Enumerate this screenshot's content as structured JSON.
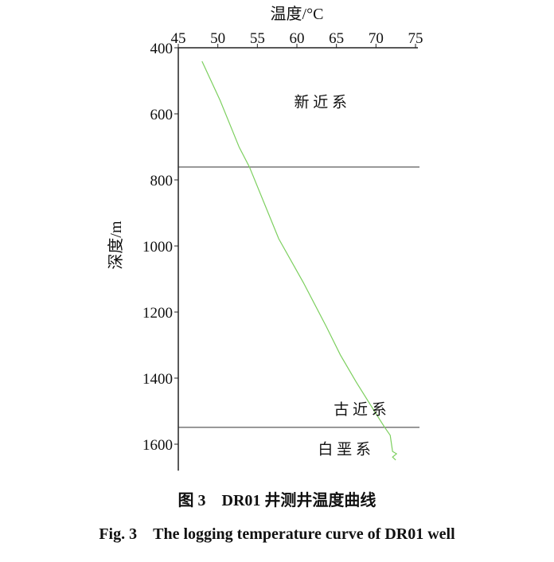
{
  "chart_data": {
    "type": "line",
    "xlabel": "温度/°C",
    "ylabel": "深度/m",
    "xlim": [
      45,
      75
    ],
    "ylim": [
      400,
      1680
    ],
    "y_inverted": true,
    "x_axis_position": "top",
    "grid": false,
    "x_ticks": [
      45,
      50,
      55,
      60,
      65,
      70,
      75
    ],
    "y_ticks": [
      400,
      600,
      800,
      1000,
      1200,
      1400,
      1600
    ],
    "series": [
      {
        "color": "#7ccf5e",
        "points": [
          [
            48.0,
            441
          ],
          [
            50.3,
            560
          ],
          [
            52.7,
            701
          ],
          [
            54.0,
            761
          ],
          [
            57.7,
            978
          ],
          [
            60.8,
            1110
          ],
          [
            63.7,
            1243
          ],
          [
            65.5,
            1330
          ],
          [
            67.5,
            1412
          ],
          [
            69.8,
            1500
          ],
          [
            71.1,
            1549
          ],
          [
            71.8,
            1573
          ],
          [
            72.1,
            1622
          ],
          [
            72.6,
            1629
          ],
          [
            72.1,
            1639
          ],
          [
            72.5,
            1648
          ]
        ]
      }
    ],
    "boundaries": [
      761,
      1549
    ],
    "annotations": [
      {
        "text": "新 近 系",
        "x": 63,
        "y": 580
      },
      {
        "text": "古 近 系",
        "x": 68,
        "y": 1510
      },
      {
        "text": "白 垩 系",
        "x": 66,
        "y": 1630
      }
    ]
  },
  "caption_cn": "图 3　DR01 井测井温度曲线",
  "caption_en": "Fig. 3　The logging temperature curve of DR01 well"
}
